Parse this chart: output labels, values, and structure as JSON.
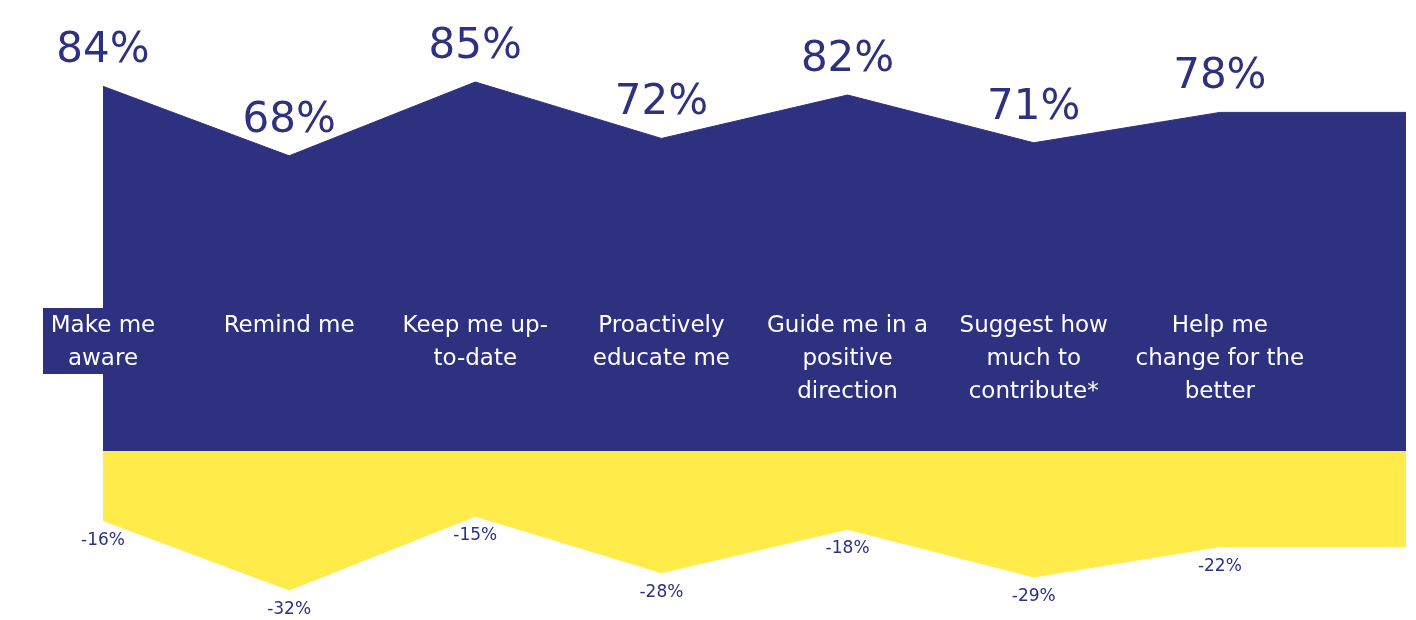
{
  "chart_data": {
    "type": "area",
    "categories": [
      "Make me aware",
      "Remind me",
      "Keep me up-to-date",
      "Proactively educate me",
      "Guide me in a positive direction",
      "Suggest how much to contribute*",
      "Help me change for the better",
      null
    ],
    "series": [
      {
        "color": "#2e3080",
        "values": [
          84,
          68,
          85,
          72,
          82,
          71,
          78,
          78
        ],
        "value_labels": [
          "84%",
          "68%",
          "85%",
          "72%",
          "82%",
          "71%",
          "78%",
          null
        ]
      },
      {
        "color": "#ffeb4a",
        "values": [
          -16,
          -32,
          -15,
          -28,
          -18,
          -29,
          -22,
          -22
        ],
        "value_labels": [
          "-16%",
          "-32%",
          "-15%",
          "-28%",
          "-18%",
          "-29%",
          "-22%",
          null
        ]
      }
    ],
    "legend": false,
    "grid": false
  }
}
